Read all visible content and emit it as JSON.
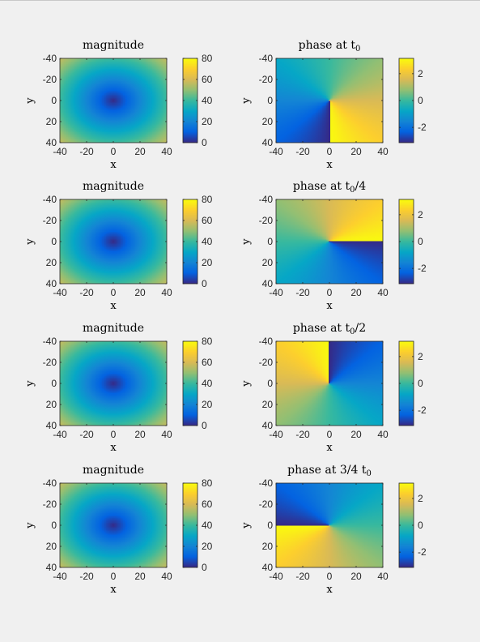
{
  "colors": {
    "parula": [
      "#352a87",
      "#0363e1",
      "#1485d4",
      "#06a7c6",
      "#38b99e",
      "#92bf73",
      "#d9ba56",
      "#fcce2e",
      "#f9fb0e"
    ],
    "background": "#f0f0f0",
    "axes": "#262626"
  },
  "chart_data": [
    {
      "type": "heatmap",
      "field": "magnitude",
      "title": "magnitude",
      "title_sub": "",
      "xlabel": "x",
      "ylabel": "y",
      "xlim": [
        -40,
        40
      ],
      "ylim": [
        -40,
        40
      ],
      "y_direction": "reversed",
      "xticks": [
        -40,
        -20,
        0,
        20,
        40
      ],
      "yticks": [
        -40,
        -20,
        0,
        20,
        40
      ],
      "colorbar": {
        "clim": [
          0,
          80
        ],
        "ticks": [
          0,
          20,
          40,
          60,
          80
        ]
      }
    },
    {
      "type": "heatmap",
      "field": "phase",
      "title": "phase at t",
      "title_sub": "0",
      "title_suffix": "",
      "phase_rotation_fraction": 1,
      "xlabel": "x",
      "ylabel": "y",
      "xlim": [
        -40,
        40
      ],
      "ylim": [
        -40,
        40
      ],
      "y_direction": "reversed",
      "xticks": [
        -40,
        -20,
        0,
        20,
        40
      ],
      "yticks": [
        -40,
        -20,
        0,
        20,
        40
      ],
      "colorbar": {
        "clim": [
          -3.14,
          3.14
        ],
        "ticks": [
          2,
          0,
          -2
        ]
      }
    },
    {
      "type": "heatmap",
      "field": "magnitude",
      "title": "magnitude",
      "title_sub": "",
      "xlabel": "x",
      "ylabel": "y",
      "xlim": [
        -40,
        40
      ],
      "ylim": [
        -40,
        40
      ],
      "y_direction": "reversed",
      "xticks": [
        -40,
        -20,
        0,
        20,
        40
      ],
      "yticks": [
        -40,
        -20,
        0,
        20,
        40
      ],
      "colorbar": {
        "clim": [
          0,
          80
        ],
        "ticks": [
          0,
          20,
          40,
          60,
          80
        ]
      }
    },
    {
      "type": "heatmap",
      "field": "phase",
      "title": "phase at t",
      "title_sub": "0",
      "title_suffix": "/4",
      "phase_rotation_fraction": 0.25,
      "xlabel": "x",
      "ylabel": "y",
      "xlim": [
        -40,
        40
      ],
      "ylim": [
        -40,
        40
      ],
      "y_direction": "reversed",
      "xticks": [
        -40,
        -20,
        0,
        20,
        40
      ],
      "yticks": [
        -40,
        -20,
        0,
        20,
        40
      ],
      "colorbar": {
        "clim": [
          -3.14,
          3.14
        ],
        "ticks": [
          2,
          0,
          -2
        ]
      }
    },
    {
      "type": "heatmap",
      "field": "magnitude",
      "title": "magnitude",
      "title_sub": "",
      "xlabel": "x",
      "ylabel": "y",
      "xlim": [
        -40,
        40
      ],
      "ylim": [
        -40,
        40
      ],
      "y_direction": "reversed",
      "xticks": [
        -40,
        -20,
        0,
        20,
        40
      ],
      "yticks": [
        -40,
        -20,
        0,
        20,
        40
      ],
      "colorbar": {
        "clim": [
          0,
          80
        ],
        "ticks": [
          0,
          20,
          40,
          60,
          80
        ]
      }
    },
    {
      "type": "heatmap",
      "field": "phase",
      "title": "phase at t",
      "title_sub": "0",
      "title_suffix": "/2",
      "phase_rotation_fraction": 0.5,
      "xlabel": "x",
      "ylabel": "y",
      "xlim": [
        -40,
        40
      ],
      "ylim": [
        -40,
        40
      ],
      "y_direction": "reversed",
      "xticks": [
        -40,
        -20,
        0,
        20,
        40
      ],
      "yticks": [
        -40,
        -20,
        0,
        20,
        40
      ],
      "colorbar": {
        "clim": [
          -3.14,
          3.14
        ],
        "ticks": [
          2,
          0,
          -2
        ]
      }
    },
    {
      "type": "heatmap",
      "field": "magnitude",
      "title": "magnitude",
      "title_sub": "",
      "xlabel": "x",
      "ylabel": "y",
      "xlim": [
        -40,
        40
      ],
      "ylim": [
        -40,
        40
      ],
      "y_direction": "reversed",
      "xticks": [
        -40,
        -20,
        0,
        20,
        40
      ],
      "yticks": [
        -40,
        -20,
        0,
        20,
        40
      ],
      "colorbar": {
        "clim": [
          0,
          80
        ],
        "ticks": [
          0,
          20,
          40,
          60,
          80
        ]
      }
    },
    {
      "type": "heatmap",
      "field": "phase",
      "title": "phase at 3/4 t",
      "title_sub": "0",
      "title_suffix": "",
      "phase_rotation_fraction": 0.75,
      "xlabel": "x",
      "ylabel": "y",
      "xlim": [
        -40,
        40
      ],
      "ylim": [
        -40,
        40
      ],
      "y_direction": "reversed",
      "xticks": [
        -40,
        -20,
        0,
        20,
        40
      ],
      "yticks": [
        -40,
        -20,
        0,
        20,
        40
      ],
      "colorbar": {
        "clim": [
          -3.14,
          3.14
        ],
        "ticks": [
          2,
          0,
          -2
        ]
      }
    }
  ]
}
